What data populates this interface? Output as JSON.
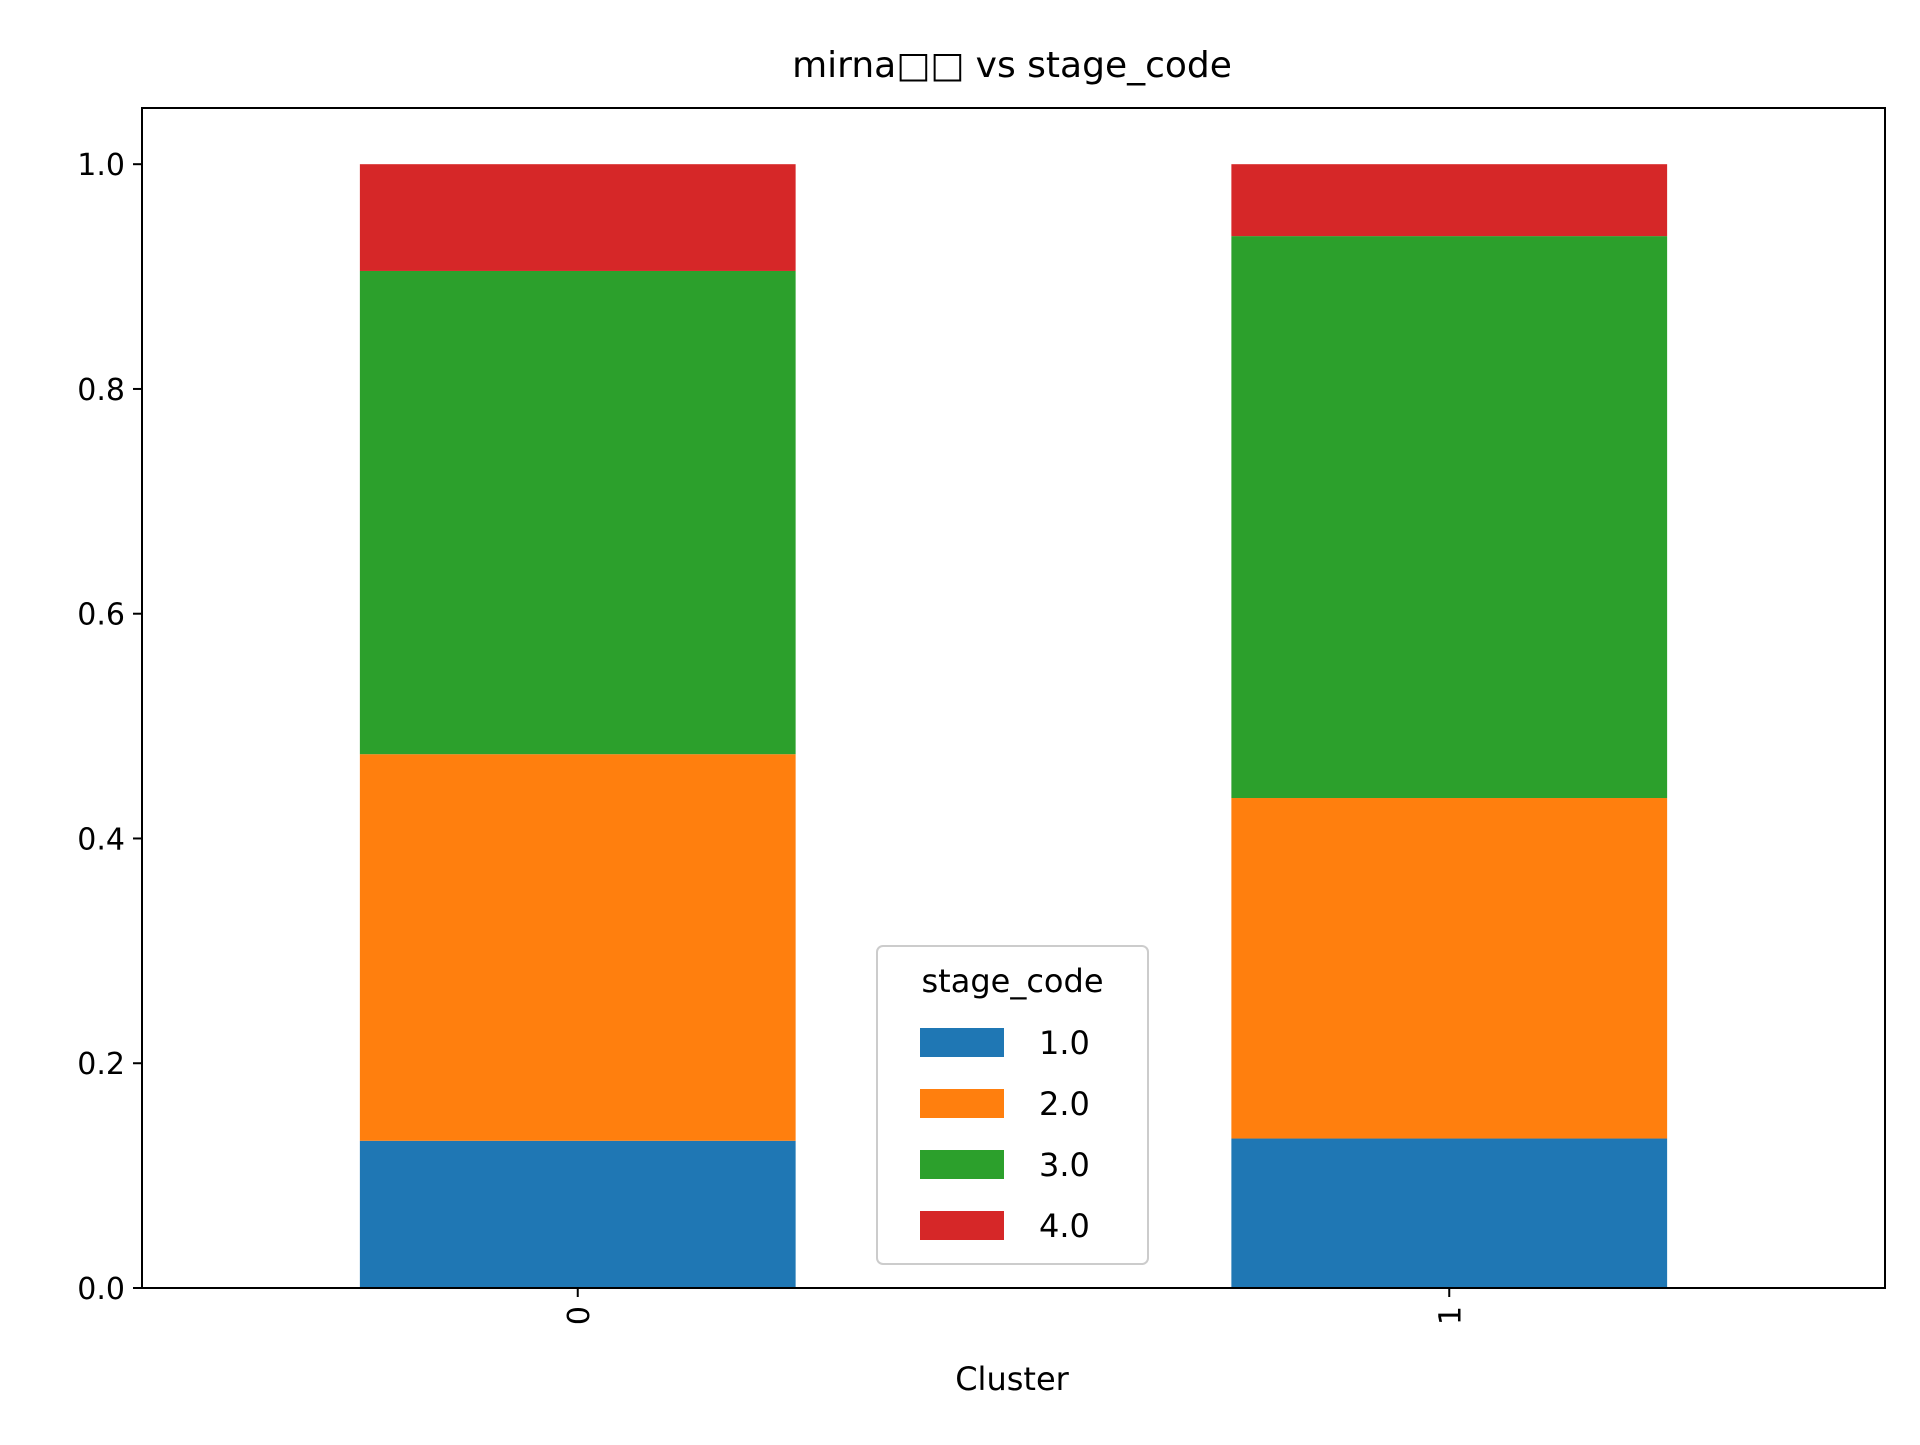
{
  "chart_data": {
    "type": "bar",
    "stacked": true,
    "title": "mirna□□ vs stage_code",
    "xlabel": "Cluster",
    "ylabel": "",
    "categories": [
      "0",
      "1"
    ],
    "ylim": [
      0,
      1.05
    ],
    "yticks": [
      0.0,
      0.2,
      0.4,
      0.6,
      0.8,
      1.0
    ],
    "ytick_labels": [
      "0.0",
      "0.2",
      "0.4",
      "0.6",
      "0.8",
      "1.0"
    ],
    "grid": false,
    "legend": {
      "title": "stage_code",
      "placement": "lower-center"
    },
    "series": [
      {
        "name": "1.0",
        "color": "#1f77b4",
        "values": [
          0.131,
          0.133
        ]
      },
      {
        "name": "2.0",
        "color": "#ff7f0e",
        "values": [
          0.344,
          0.303
        ]
      },
      {
        "name": "3.0",
        "color": "#2ca02c",
        "values": [
          0.43,
          0.5
        ]
      },
      {
        "name": "4.0",
        "color": "#d62728",
        "values": [
          0.095,
          0.064
        ]
      }
    ]
  }
}
